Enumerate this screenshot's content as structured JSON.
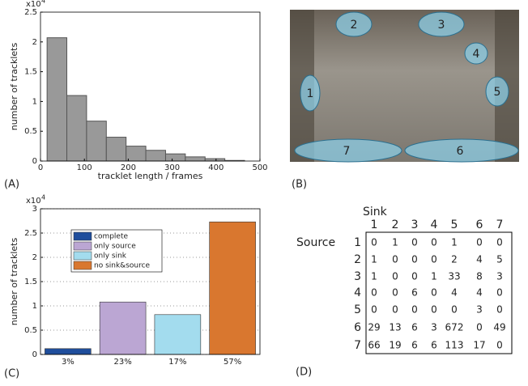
{
  "chart_data": [
    {
      "type": "histogram",
      "ylabel": "number of tracklets",
      "xlabel": "tracklet length / frames",
      "y_multiplier": "x10",
      "y_multiplier_exp": "4",
      "bins": [
        15,
        60,
        105,
        150,
        195,
        240,
        285,
        330,
        375,
        420,
        465
      ],
      "values": [
        2.07,
        1.1,
        0.67,
        0.4,
        0.25,
        0.18,
        0.12,
        0.07,
        0.04,
        0.01
      ],
      "color": "#999999",
      "xlim": [
        0,
        500
      ],
      "xticks": [
        0,
        100,
        200,
        300,
        400,
        500
      ],
      "ylim": [
        0,
        2.5
      ],
      "yticks": [
        0,
        0.5,
        1,
        1.5,
        2,
        2.5
      ],
      "grid": false
    },
    {
      "type": "bar",
      "ylabel": "number of tracklets",
      "y_multiplier": "x10",
      "y_multiplier_exp": "4",
      "categories": [
        "3%",
        "23%",
        "17%",
        "57%"
      ],
      "series": [
        {
          "name": "complete",
          "color": "#1f4e9c",
          "values": [
            0.12,
            null,
            null,
            null
          ]
        },
        {
          "name": "only source",
          "color": "#bba6d3",
          "values": [
            null,
            1.08,
            null,
            null
          ]
        },
        {
          "name": "only sink",
          "color": "#a3dcee",
          "values": [
            null,
            null,
            0.82,
            null
          ]
        },
        {
          "name": "no sink&source",
          "color": "#d9772f",
          "values": [
            null,
            null,
            null,
            2.73
          ]
        }
      ],
      "ylim": [
        0,
        3
      ],
      "yticks": [
        0,
        0.5,
        1,
        1.5,
        2,
        2.5,
        3
      ],
      "grid": true,
      "legend": "upper-left"
    }
  ],
  "panel_labels": [
    "(A)",
    "(B)",
    "(C)",
    "(D)"
  ],
  "photo": {
    "regions": [
      "1",
      "2",
      "3",
      "4",
      "5",
      "6",
      "7"
    ]
  },
  "table": {
    "col_title": "Sink",
    "row_title": "Source",
    "columns": [
      "1",
      "2",
      "3",
      "4",
      "5",
      "6",
      "7"
    ],
    "row_labels": [
      "1",
      "2",
      "3",
      "4",
      "5",
      "6",
      "7"
    ],
    "rows": [
      [
        0,
        1,
        0,
        0,
        1,
        0,
        0
      ],
      [
        1,
        0,
        0,
        0,
        2,
        4,
        5
      ],
      [
        1,
        0,
        0,
        1,
        33,
        8,
        3
      ],
      [
        0,
        0,
        6,
        0,
        4,
        4,
        0
      ],
      [
        0,
        0,
        0,
        0,
        0,
        3,
        0
      ],
      [
        29,
        13,
        6,
        3,
        672,
        0,
        49
      ],
      [
        66,
        19,
        6,
        6,
        113,
        17,
        0
      ]
    ]
  }
}
